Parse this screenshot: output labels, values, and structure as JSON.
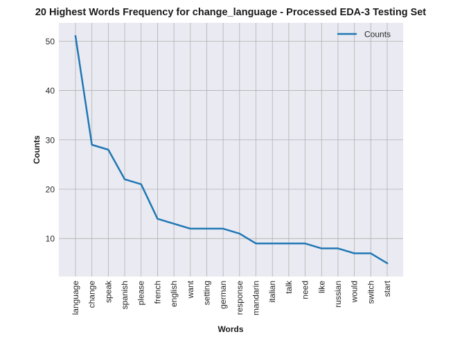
{
  "chart_data": {
    "type": "line",
    "title": "20 Highest Words Frequency for change_language - Processed EDA-3 Testing Set",
    "xlabel": "Words",
    "ylabel": "Counts",
    "categories": [
      "language",
      "change",
      "speak",
      "spanish",
      "please",
      "french",
      "english",
      "want",
      "setting",
      "german",
      "response",
      "mandarin",
      "italian",
      "talk",
      "need",
      "like",
      "russian",
      "would",
      "switch",
      "start"
    ],
    "series": [
      {
        "name": "Counts",
        "values": [
          51,
          29,
          28,
          22,
          21,
          14,
          13,
          12,
          12,
          12,
          11,
          9,
          9,
          9,
          9,
          8,
          8,
          7,
          7,
          5
        ]
      }
    ],
    "ylim": [
      2.3,
      53.7
    ],
    "yticks": [
      10,
      20,
      30,
      40,
      50
    ],
    "grid": true,
    "legend": "upper right",
    "colors": {
      "line": "#1f77b4",
      "background": "#eaeaf2",
      "grid": "#b0b0b0"
    }
  }
}
